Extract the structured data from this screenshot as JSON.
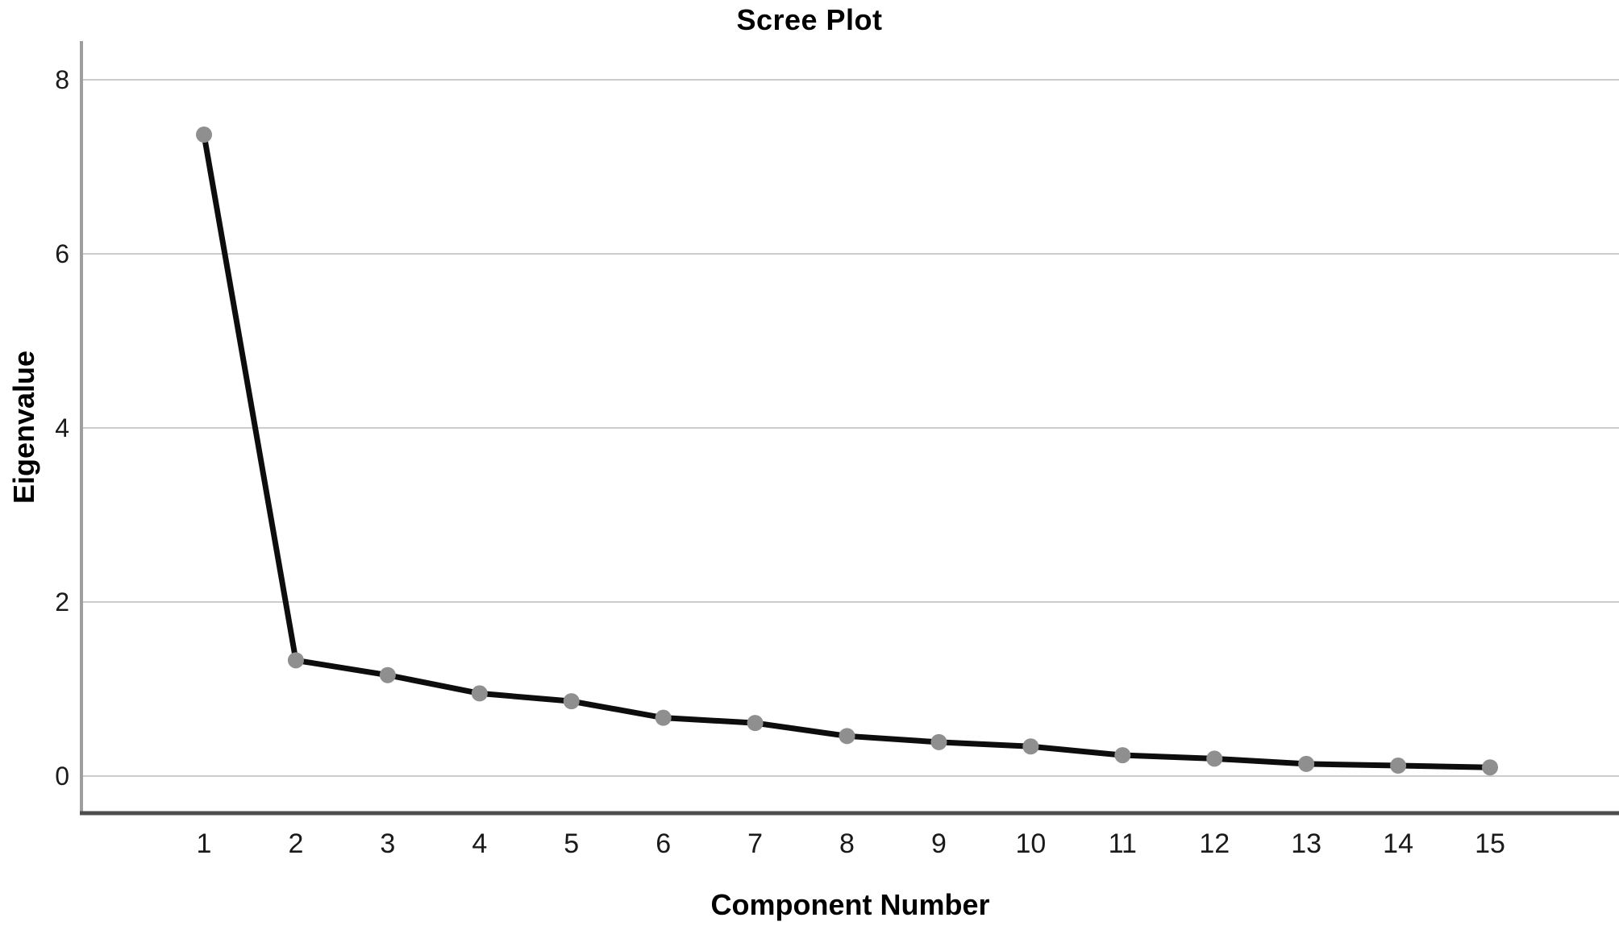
{
  "chart_data": {
    "type": "line",
    "title": "Scree Plot",
    "xlabel": "Component Number",
    "ylabel": "Eigenvalue",
    "x": [
      1,
      2,
      3,
      4,
      5,
      6,
      7,
      8,
      9,
      10,
      11,
      12,
      13,
      14,
      15
    ],
    "series": [
      {
        "name": "Eigenvalue",
        "values": [
          7.37,
          1.33,
          1.16,
          0.95,
          0.86,
          0.67,
          0.61,
          0.46,
          0.39,
          0.34,
          0.24,
          0.2,
          0.14,
          0.12,
          0.1
        ]
      }
    ],
    "xticks": [
      1,
      2,
      3,
      4,
      5,
      6,
      7,
      8,
      9,
      10,
      11,
      12,
      13,
      14,
      15
    ],
    "yticks": [
      0,
      2,
      4,
      6,
      8
    ],
    "ylim": [
      0,
      8.44
    ],
    "grid": "horizontal-only",
    "legend": "none",
    "marker_shape": "circle"
  },
  "colors": {
    "background": "#ffffff",
    "line": "#0d0d0d",
    "marker": "#8f8f8f",
    "grid": "#cccccc",
    "axis_y": "#9e9e9e",
    "axis_x": "#4d4d4d",
    "text": "#1a1a1a",
    "title_text": "#000000"
  }
}
